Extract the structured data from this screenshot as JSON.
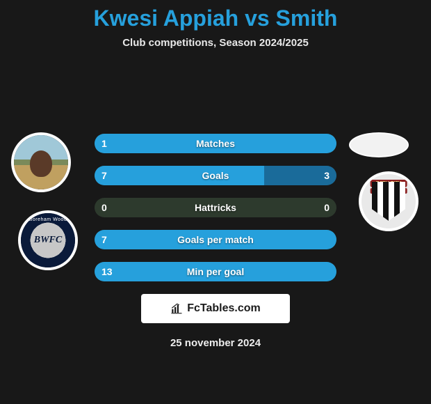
{
  "title": "Kwesi Appiah vs Smith",
  "subtitle": "Club competitions, Season 2024/2025",
  "date": "25 november 2024",
  "brand": "FcTables.com",
  "colors": {
    "accent": "#26a0dc",
    "bar_left": "#26a0dc",
    "bar_right": "#1a6b9a",
    "bar_bg": "#2d3a2d",
    "page_bg": "#181818"
  },
  "players": {
    "left": {
      "name": "Kwesi Appiah",
      "club": "Boreham Wood",
      "club_abbrev": "BWFC"
    },
    "right": {
      "name": "Smith",
      "club": "Bath City",
      "club_banner": "BATH CITY",
      "club_sub": "FOOTBALL CLUB"
    }
  },
  "stats": [
    {
      "label": "Matches",
      "left_val": "1",
      "right_val": "",
      "left_pct": 100,
      "right_pct": 0
    },
    {
      "label": "Goals",
      "left_val": "7",
      "right_val": "3",
      "left_pct": 70,
      "right_pct": 30
    },
    {
      "label": "Hattricks",
      "left_val": "0",
      "right_val": "0",
      "left_pct": 0,
      "right_pct": 0
    },
    {
      "label": "Goals per match",
      "left_val": "7",
      "right_val": "",
      "left_pct": 100,
      "right_pct": 0
    },
    {
      "label": "Min per goal",
      "left_val": "13",
      "right_val": "",
      "left_pct": 100,
      "right_pct": 0
    }
  ]
}
